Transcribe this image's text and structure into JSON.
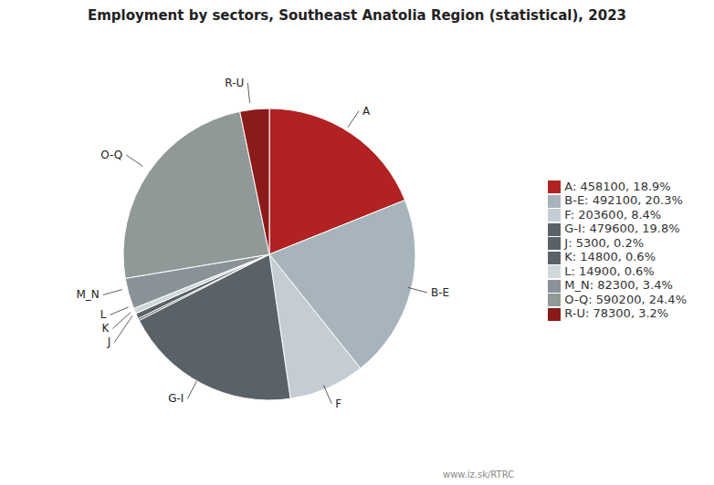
{
  "chart_data": {
    "type": "pie",
    "title": "Employment by sectors, Southeast Anatolia Region (statistical), 2023",
    "categories": [
      "A",
      "B-E",
      "F",
      "G-I",
      "J",
      "K",
      "L",
      "M_N",
      "O-Q",
      "R-U"
    ],
    "values": [
      458100,
      492100,
      203600,
      479600,
      5300,
      14800,
      14900,
      82300,
      590200,
      78300
    ],
    "value_labels": [
      "A: 458100, 18.9%",
      "B-E: 492100, 20.3%",
      "F: 203600, 8.4%",
      "G-I: 479600, 19.8%",
      "J: 5300, 0.2%",
      "K: 14800, 0.6%",
      "L: 14900, 0.6%",
      "M_N: 82300, 3.4%",
      "O-Q: 590200, 24.4%",
      "R-U: 78300, 3.2%"
    ],
    "colors": [
      "#b22222",
      "#a8b4bc",
      "#c4cdd4",
      "#5a6268",
      "#5a6268",
      "#5a6268",
      "#d0d8dc",
      "#8a9298",
      "#909898",
      "#8b1a1a"
    ],
    "legend": "right",
    "annotations": [
      "www.iz.sk/RTRC"
    ]
  }
}
